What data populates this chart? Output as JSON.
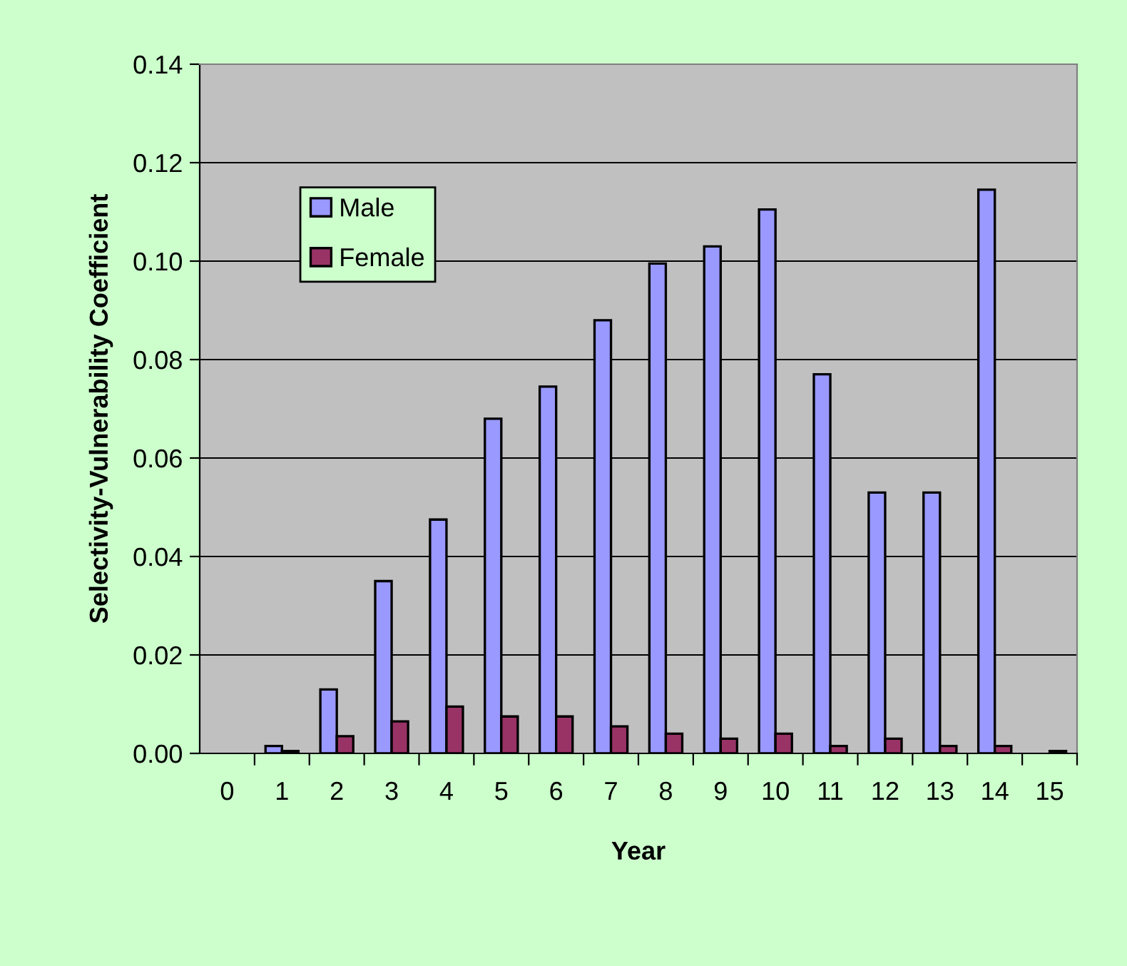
{
  "chart_data": {
    "type": "bar",
    "xlabel": "Year",
    "ylabel": "Selectivity-Vulnerability Coefficient",
    "categories": [
      "0",
      "1",
      "2",
      "3",
      "4",
      "5",
      "6",
      "7",
      "8",
      "9",
      "10",
      "11",
      "12",
      "13",
      "14",
      "15"
    ],
    "series": [
      {
        "name": "Male",
        "color": "#9999ff",
        "values": [
          null,
          0.0015,
          0.013,
          0.035,
          0.0475,
          0.068,
          0.0745,
          0.088,
          0.0995,
          0.103,
          0.1105,
          0.077,
          0.053,
          0.053,
          0.1145,
          null
        ]
      },
      {
        "name": "Female",
        "color": "#993366",
        "values": [
          null,
          0.0005,
          0.0035,
          0.0065,
          0.0095,
          0.0075,
          0.0075,
          0.0055,
          0.004,
          0.003,
          0.004,
          0.0015,
          0.003,
          0.0015,
          0.0015,
          0.0005
        ]
      }
    ],
    "ylim": [
      0,
      0.14
    ],
    "yticks": [
      {
        "value": 0,
        "label": "0.00"
      },
      {
        "value": 0.02,
        "label": "0.02"
      },
      {
        "value": 0.04,
        "label": "0.04"
      },
      {
        "value": 0.06,
        "label": "0.06"
      },
      {
        "value": 0.08,
        "label": "0.08"
      },
      {
        "value": 0.1,
        "label": "0.10"
      },
      {
        "value": 0.12,
        "label": "0.12"
      },
      {
        "value": 0.14,
        "label": "0.14"
      }
    ],
    "grid": "y",
    "legend": "top left"
  }
}
